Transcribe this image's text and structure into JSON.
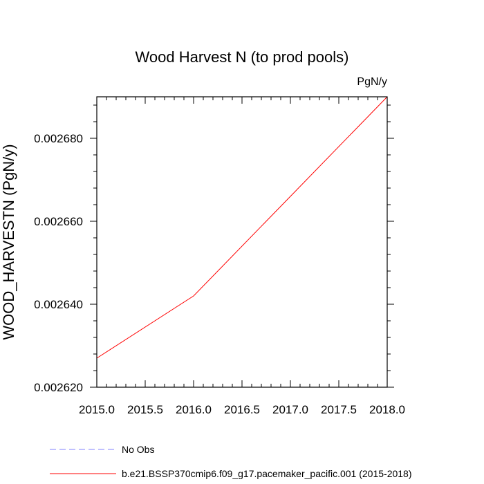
{
  "chart_data": {
    "type": "line",
    "title": "Wood Harvest N (to prod pools)",
    "units": "PgN/y",
    "ylabel": "WOOD_HARVESTN  (PgN/y)",
    "xlabel": "",
    "xlim": [
      2015.0,
      2018.0
    ],
    "ylim": [
      0.00262,
      0.00269
    ],
    "x_ticks": [
      "2015.0",
      "2015.5",
      "2016.0",
      "2016.5",
      "2017.0",
      "2017.5",
      "2018.0"
    ],
    "y_ticks": [
      "0.002620",
      "0.002640",
      "0.002660",
      "0.002680"
    ],
    "grid": false,
    "legend_position": "bottom",
    "series": [
      {
        "name": "b.e21.BSSP370cmip6.f09_g17.pacemaker_pacific.001 (2015-2018)",
        "color": "#ff0000",
        "dash": "solid",
        "x": [
          2015,
          2016,
          2017,
          2018
        ],
        "y": [
          0.002627,
          0.002642,
          0.002666,
          0.00269
        ]
      }
    ],
    "legend": [
      {
        "label": "No Obs",
        "color": "#8080ff",
        "dash": "dashed"
      },
      {
        "label": "b.e21.BSSP370cmip6.f09_g17.pacemaker_pacific.001 (2015-2018)",
        "color": "#ff0000",
        "dash": "solid"
      }
    ]
  }
}
